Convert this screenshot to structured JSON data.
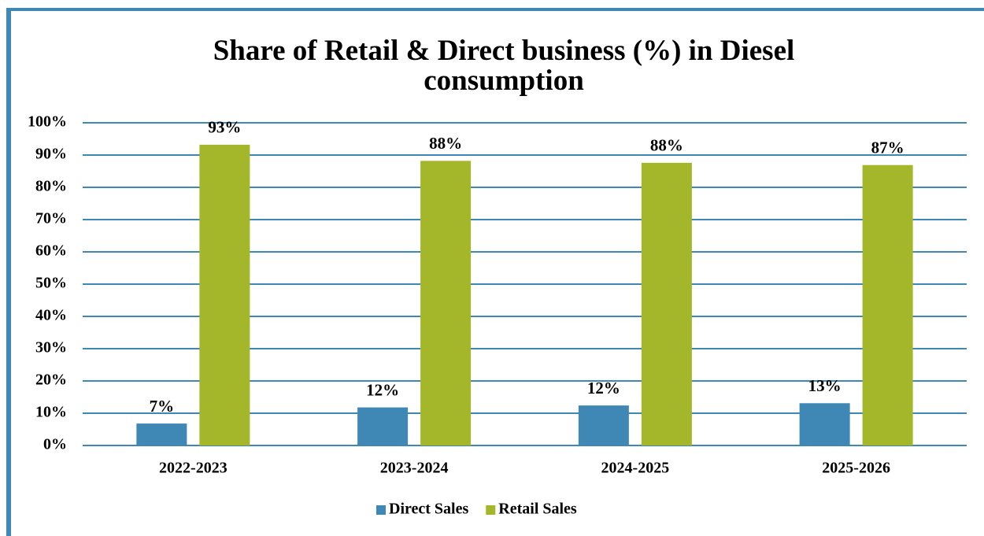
{
  "chart_data": {
    "type": "bar",
    "title": "Share of Retail & Direct business (%) in Diesel consumption",
    "categories": [
      "2022-2023",
      "2023-2024",
      "2024-2025",
      "2025-2026"
    ],
    "series": [
      {
        "name": "Direct Sales",
        "color": "#3f87b5",
        "values": [
          6.8,
          11.8,
          12.4,
          13.1
        ],
        "value_labels": [
          "7%",
          "12%",
          "12%",
          "13%"
        ]
      },
      {
        "name": "Retail Sales",
        "color": "#a4b62a",
        "values": [
          93.2,
          88.2,
          87.6,
          86.9
        ],
        "value_labels": [
          "93%",
          "88%",
          "88%",
          "87%"
        ]
      }
    ],
    "ylim": [
      0,
      100
    ],
    "yticks": [
      {
        "value": 0,
        "label": "0%"
      },
      {
        "value": 10,
        "label": "10%"
      },
      {
        "value": 20,
        "label": "20%"
      },
      {
        "value": 30,
        "label": "30%"
      },
      {
        "value": 40,
        "label": "40%"
      },
      {
        "value": 50,
        "label": "50%"
      },
      {
        "value": 60,
        "label": "60%"
      },
      {
        "value": 70,
        "label": "70%"
      },
      {
        "value": 80,
        "label": "80%"
      },
      {
        "value": 90,
        "label": "90%"
      },
      {
        "value": 100,
        "label": "100%"
      }
    ],
    "grid": true,
    "legend": "bottom"
  }
}
